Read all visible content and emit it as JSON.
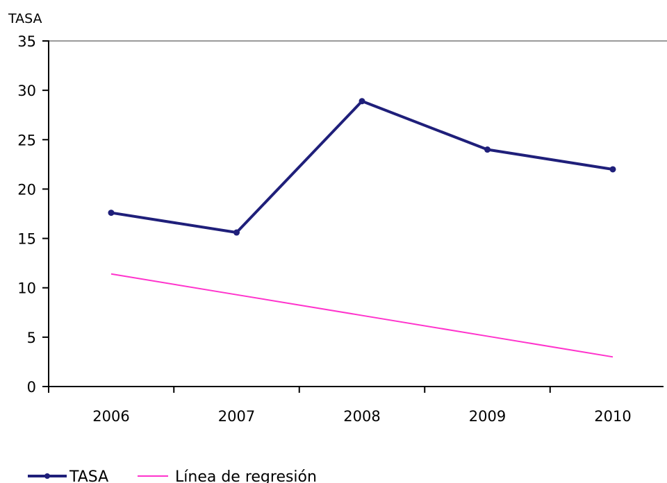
{
  "chart_data": {
    "type": "line",
    "ylabel": "TASA",
    "categories": [
      "2006",
      "2007",
      "2008",
      "2009",
      "2010"
    ],
    "ylim": [
      0,
      35
    ],
    "yticks": [
      0,
      5,
      10,
      15,
      20,
      25,
      30,
      35
    ],
    "grid": false,
    "legend_position": "bottom-left",
    "series": [
      {
        "name": "TASA",
        "values": [
          17.6,
          15.6,
          28.9,
          24.0,
          22.0
        ],
        "color": "#1f1f7a",
        "markers": true
      },
      {
        "name": "Línea de regresión",
        "values": [
          11.4,
          9.3,
          7.2,
          5.1,
          3.0
        ],
        "color": "#ff33cc",
        "markers": false
      }
    ]
  }
}
